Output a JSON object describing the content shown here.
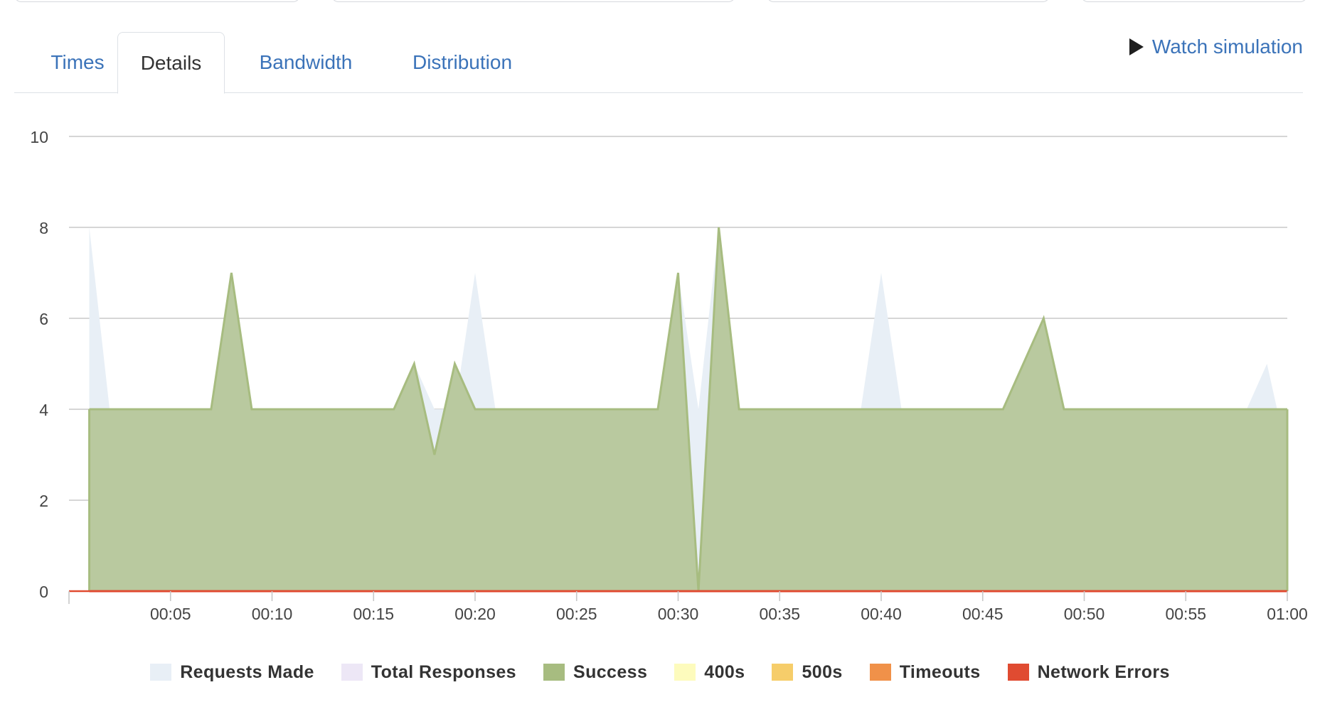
{
  "tabs": [
    {
      "label": "Times",
      "active": false
    },
    {
      "label": "Details",
      "active": true
    },
    {
      "label": "Bandwidth",
      "active": false
    },
    {
      "label": "Distribution",
      "active": false
    }
  ],
  "watch_simulation": {
    "label": "Watch simulation",
    "icon": "play-icon"
  },
  "legend": [
    {
      "name": "Requests Made",
      "color": "#e8eff6"
    },
    {
      "name": "Total Responses",
      "color": "#ede7f6"
    },
    {
      "name": "Success",
      "color": "#a7bc80"
    },
    {
      "name": "400s",
      "color": "#fdfbbd"
    },
    {
      "name": "500s",
      "color": "#f6cd6a"
    },
    {
      "name": "Timeouts",
      "color": "#f09149"
    },
    {
      "name": "Network Errors",
      "color": "#e04b31"
    }
  ],
  "chart_data": {
    "type": "area",
    "title": "",
    "xlabel": "",
    "ylabel": "",
    "ylim": [
      0,
      10
    ],
    "yticks": [
      0,
      2,
      4,
      6,
      8,
      10
    ],
    "xlim": [
      0,
      60
    ],
    "xticks": [
      5,
      10,
      15,
      20,
      25,
      30,
      35,
      40,
      45,
      50,
      55,
      60
    ],
    "xtick_labels": [
      "00:05",
      "00:10",
      "00:15",
      "00:20",
      "00:25",
      "00:30",
      "00:35",
      "00:40",
      "00:45",
      "00:50",
      "00:55",
      "01:00"
    ],
    "grid": true,
    "legend_position": "bottom",
    "x": [
      1,
      2,
      3,
      4,
      5,
      6,
      7,
      8,
      9,
      10,
      11,
      12,
      13,
      14,
      15,
      16,
      17,
      18,
      19,
      20,
      21,
      22,
      23,
      24,
      25,
      26,
      27,
      28,
      29,
      30,
      31,
      32,
      33,
      34,
      35,
      36,
      37,
      38,
      39,
      40,
      41,
      42,
      43,
      44,
      45,
      46,
      47,
      48,
      49,
      50,
      51,
      52,
      53,
      54,
      55,
      56,
      57,
      58,
      59,
      60
    ],
    "series": [
      {
        "name": "Requests Made",
        "color": "#e8eff6",
        "values": [
          8,
          4,
          4,
          4,
          4,
          4,
          4,
          7,
          4,
          4,
          4,
          4,
          4,
          4,
          4,
          4,
          5,
          4,
          4,
          7,
          4,
          4,
          4,
          4,
          4,
          4,
          4,
          4,
          4,
          7,
          4,
          8,
          4,
          4,
          4,
          4,
          4,
          4,
          4,
          7,
          4,
          4,
          4,
          4,
          4,
          4,
          5,
          6,
          4,
          4,
          4,
          4,
          4,
          4,
          4,
          4,
          4,
          4,
          5,
          3
        ]
      },
      {
        "name": "Total Responses",
        "color": "#ede7f6",
        "values": [
          4,
          4,
          4,
          4,
          4,
          4,
          4,
          7,
          4,
          4,
          4,
          4,
          4,
          4,
          4,
          4,
          5,
          3,
          5,
          4,
          4,
          4,
          4,
          4,
          4,
          4,
          4,
          4,
          4,
          7,
          0,
          8,
          4,
          4,
          4,
          4,
          4,
          4,
          4,
          4,
          4,
          4,
          4,
          4,
          4,
          4,
          5,
          6,
          4,
          4,
          4,
          4,
          4,
          4,
          4,
          4,
          4,
          4,
          4,
          4
        ]
      },
      {
        "name": "Success",
        "color": "#a7bc80",
        "values": [
          4,
          4,
          4,
          4,
          4,
          4,
          4,
          7,
          4,
          4,
          4,
          4,
          4,
          4,
          4,
          4,
          5,
          3,
          5,
          4,
          4,
          4,
          4,
          4,
          4,
          4,
          4,
          4,
          4,
          7,
          0,
          8,
          4,
          4,
          4,
          4,
          4,
          4,
          4,
          4,
          4,
          4,
          4,
          4,
          4,
          4,
          5,
          6,
          4,
          4,
          4,
          4,
          4,
          4,
          4,
          4,
          4,
          4,
          4,
          4
        ]
      },
      {
        "name": "400s",
        "color": "#fdfbbd",
        "values": [
          0,
          0,
          0,
          0,
          0,
          0,
          0,
          0,
          0,
          0,
          0,
          0,
          0,
          0,
          0,
          0,
          0,
          0,
          0,
          0,
          0,
          0,
          0,
          0,
          0,
          0,
          0,
          0,
          0,
          0,
          0,
          0,
          0,
          0,
          0,
          0,
          0,
          0,
          0,
          0,
          0,
          0,
          0,
          0,
          0,
          0,
          0,
          0,
          0,
          0,
          0,
          0,
          0,
          0,
          0,
          0,
          0,
          0,
          0,
          0
        ]
      },
      {
        "name": "500s",
        "color": "#f6cd6a",
        "values": [
          0,
          0,
          0,
          0,
          0,
          0,
          0,
          0,
          0,
          0,
          0,
          0,
          0,
          0,
          0,
          0,
          0,
          0,
          0,
          0,
          0,
          0,
          0,
          0,
          0,
          0,
          0,
          0,
          0,
          0,
          0,
          0,
          0,
          0,
          0,
          0,
          0,
          0,
          0,
          0,
          0,
          0,
          0,
          0,
          0,
          0,
          0,
          0,
          0,
          0,
          0,
          0,
          0,
          0,
          0,
          0,
          0,
          0,
          0,
          0
        ]
      },
      {
        "name": "Timeouts",
        "color": "#f09149",
        "values": [
          0,
          0,
          0,
          0,
          0,
          0,
          0,
          0,
          0,
          0,
          0,
          0,
          0,
          0,
          0,
          0,
          0,
          0,
          0,
          0,
          0,
          0,
          0,
          0,
          0,
          0,
          0,
          0,
          0,
          0,
          0,
          0,
          0,
          0,
          0,
          0,
          0,
          0,
          0,
          0,
          0,
          0,
          0,
          0,
          0,
          0,
          0,
          0,
          0,
          0,
          0,
          0,
          0,
          0,
          0,
          0,
          0,
          0,
          0,
          0
        ]
      },
      {
        "name": "Network Errors",
        "color": "#e04b31",
        "values": [
          0,
          0,
          0,
          0,
          0,
          0,
          0,
          0,
          0,
          0,
          0,
          0,
          0,
          0,
          0,
          0,
          0,
          0,
          0,
          0,
          0,
          0,
          0,
          0,
          0,
          0,
          0,
          0,
          0,
          0,
          0,
          0,
          0,
          0,
          0,
          0,
          0,
          0,
          0,
          0,
          0,
          0,
          0,
          0,
          0,
          0,
          0,
          0,
          0,
          0,
          0,
          0,
          0,
          0,
          0,
          0,
          0,
          0,
          0,
          0
        ]
      }
    ]
  }
}
